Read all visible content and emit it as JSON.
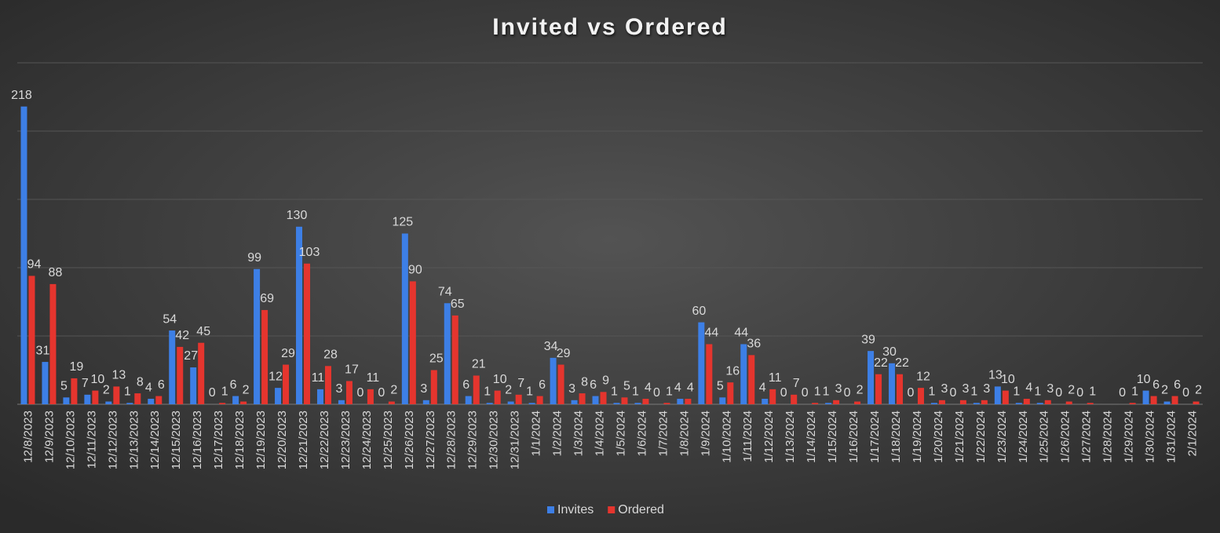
{
  "chart_data": {
    "type": "bar",
    "title": "Invited vs Ordered",
    "categories": [
      "12/8/2023",
      "12/9/2023",
      "12/10/2023",
      "12/11/2023",
      "12/12/2023",
      "12/13/2023",
      "12/14/2023",
      "12/15/2023",
      "12/16/2023",
      "12/17/2023",
      "12/18/2023",
      "12/19/2023",
      "12/20/2023",
      "12/21/2023",
      "12/22/2023",
      "12/23/2023",
      "12/24/2023",
      "12/25/2023",
      "12/26/2023",
      "12/27/2023",
      "12/28/2023",
      "12/29/2023",
      "12/30/2023",
      "12/31/2023",
      "1/1/2024",
      "1/2/2024",
      "1/3/2024",
      "1/4/2024",
      "1/5/2024",
      "1/6/2024",
      "1/7/2024",
      "1/8/2024",
      "1/9/2024",
      "1/10/2024",
      "1/11/2024",
      "1/12/2024",
      "1/13/2024",
      "1/14/2024",
      "1/15/2024",
      "1/16/2024",
      "1/17/2024",
      "1/18/2024",
      "1/19/2024",
      "1/20/2024",
      "1/21/2024",
      "1/22/2024",
      "1/23/2024",
      "1/24/2024",
      "1/25/2024",
      "1/26/2024",
      "1/27/2024",
      "1/28/2024",
      "1/29/2024",
      "1/30/2024",
      "1/31/2024",
      "2/1/2024"
    ],
    "series": [
      {
        "name": "Invites",
        "color": "#3d7fe6",
        "values": [
          218,
          31,
          5,
          7,
          2,
          1,
          4,
          54,
          27,
          0,
          6,
          99,
          12,
          130,
          11,
          3,
          0,
          0,
          125,
          3,
          74,
          6,
          1,
          2,
          1,
          34,
          3,
          6,
          1,
          1,
          0,
          4,
          60,
          5,
          44,
          4,
          0,
          0,
          1,
          0,
          39,
          30,
          0,
          1,
          0,
          1,
          13,
          1,
          1,
          0,
          0,
          null,
          0,
          10,
          2,
          0
        ]
      },
      {
        "name": "Ordered",
        "color": "#e5352e",
        "values": [
          94,
          88,
          19,
          10,
          13,
          8,
          6,
          42,
          45,
          1,
          2,
          69,
          29,
          103,
          28,
          17,
          11,
          2,
          90,
          25,
          65,
          21,
          10,
          7,
          6,
          29,
          8,
          9,
          5,
          4,
          1,
          4,
          44,
          16,
          36,
          11,
          7,
          1,
          3,
          2,
          22,
          22,
          12,
          3,
          3,
          3,
          10,
          4,
          3,
          2,
          1,
          null,
          1,
          6,
          6,
          2
        ]
      }
    ],
    "ylim": [
      0,
      250
    ],
    "yticks": [
      0,
      50,
      100,
      150,
      200,
      250
    ],
    "grid": true,
    "legend": "bottom"
  }
}
